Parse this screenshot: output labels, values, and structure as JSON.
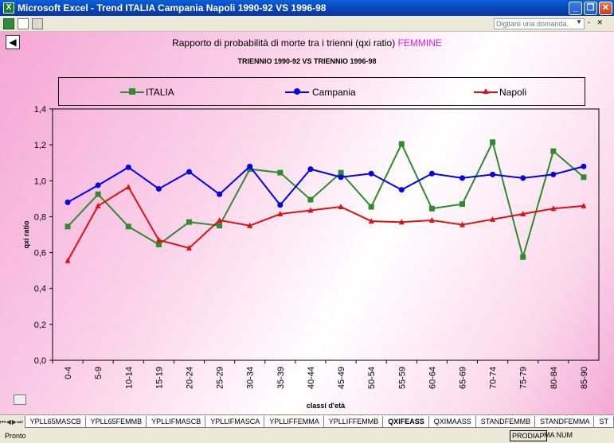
{
  "window": {
    "title": "Microsoft Excel - Trend ITALIA Campania Napoli 1990-92 VS 1996-98",
    "minimize": "_",
    "restore": "❐",
    "close": "✕"
  },
  "toolbar": {
    "ask_placeholder": "Digitare una domanda.",
    "right_controls": "- ✕"
  },
  "chart": {
    "title_main": "Rapporto di probabilità di morte tra i trienni (qxi ratio)",
    "title_highlight": "FEMMINE",
    "subtitle": "TRIENNIO 1990-92 VS TRIENNIO 1996-98"
  },
  "chart_data": {
    "type": "line",
    "categories": [
      "0-4",
      "5-9",
      "10-14",
      "15-19",
      "20-24",
      "25-29",
      "30-34",
      "35-39",
      "40-44",
      "45-49",
      "50-54",
      "55-59",
      "60-64",
      "65-69",
      "70-74",
      "75-79",
      "80-84",
      "85-90"
    ],
    "xlabel": "classi d'età",
    "ylabel": "qxi ratio",
    "ylim": [
      0,
      1.4
    ],
    "yticks": [
      "0,0",
      "0,2",
      "0,4",
      "0,6",
      "0,8",
      "1,0",
      "1,2",
      "1,4"
    ],
    "legend_placement": "top",
    "series": [
      {
        "name": "ITALIA",
        "color": "#2e8b2e",
        "marker": "square",
        "values": [
          0.745,
          0.925,
          0.745,
          0.645,
          0.77,
          0.75,
          1.065,
          1.045,
          0.895,
          1.045,
          0.855,
          1.205,
          0.845,
          0.87,
          1.215,
          0.575,
          1.165,
          1.02
        ]
      },
      {
        "name": "Campania",
        "color": "#0000ee",
        "marker": "circle",
        "values": [
          0.88,
          0.975,
          1.075,
          0.955,
          1.05,
          0.925,
          1.08,
          0.865,
          1.065,
          1.02,
          1.04,
          0.95,
          1.04,
          1.015,
          1.035,
          1.015,
          1.035,
          1.08
        ]
      },
      {
        "name": "Napoli",
        "color": "#e01010",
        "marker": "triangle",
        "values": [
          0.555,
          0.86,
          0.965,
          0.67,
          0.625,
          0.78,
          0.75,
          0.815,
          0.835,
          0.855,
          0.775,
          0.77,
          0.78,
          0.755,
          0.785,
          0.815,
          0.845,
          0.86
        ]
      }
    ]
  },
  "sheet_tabs": {
    "items": [
      "YPLL65MASCB",
      "YPLL65FEMMB",
      "YPLLIFMASCB",
      "YPLLIFMASCA",
      "YPLLIFFEMMA",
      "YPLLIFFEMMB",
      "QXIFEASS",
      "QXIMAASS",
      "STANDFEMMB",
      "STANDFEMMA",
      "ST"
    ],
    "active": "QXIFEASS"
  },
  "status": {
    "ready": "Pronto",
    "prodiap": "PRODIAP",
    "num": "MA NUM"
  }
}
